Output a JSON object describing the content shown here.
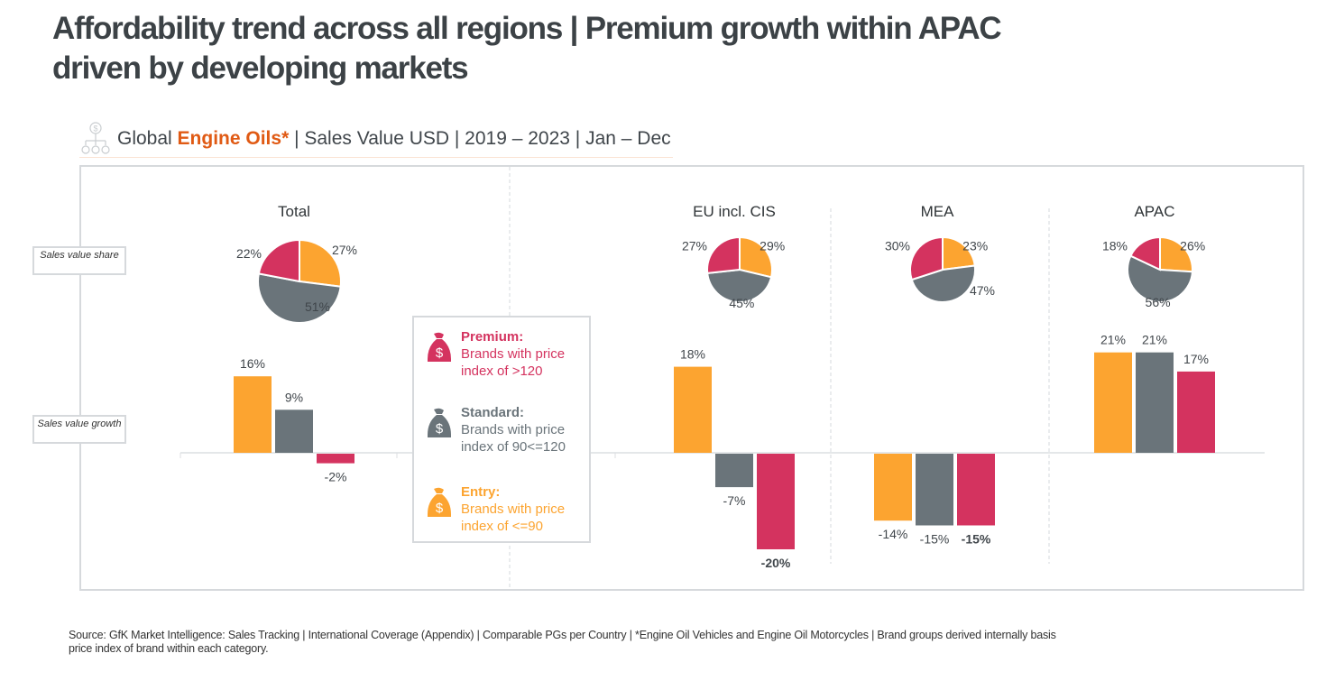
{
  "header": {
    "title": "Affordability trend across all regions | Premium growth within APAC driven by developing markets",
    "subtitle_prefix": "Global ",
    "subtitle_accent": "Engine Oils*",
    "subtitle_suffix": " | Sales Value USD | 2019 – 2023 | Jan – Dec",
    "subtitle_icon": "hierarchy-money-icon"
  },
  "row_labels": {
    "share": "Sales value share",
    "growth": "Sales value growth"
  },
  "legend": [
    {
      "key": "premium",
      "title": "Premium:",
      "desc1": "Brands with price",
      "desc2": "index of >120",
      "color": "#d4335f",
      "icon": "money-bag-icon"
    },
    {
      "key": "standard",
      "title": "Standard:",
      "desc1": "Brands with price",
      "desc2": "index of 90<=120",
      "color": "#6a747a",
      "icon": "money-bag-icon"
    },
    {
      "key": "entry",
      "title": "Entry:",
      "desc1": "Brands with price",
      "desc2": "index of <=90",
      "color": "#fca430",
      "icon": "money-bag-icon"
    }
  ],
  "footer": "Source: GfK Market Intelligence: Sales Tracking | International Coverage (Appendix) | Comparable PGs per Country | *Engine Oil Vehicles and Engine Oil Motorcycles | Brand groups derived internally basis price index of brand within each category.",
  "chart_data": {
    "type": "bar",
    "title": "Global Engine Oils* | Sales Value USD | 2019 – 2023 | Jan – Dec",
    "categories": [
      "Total",
      "EU incl. CIS",
      "MEA",
      "APAC"
    ],
    "colors": {
      "Entry": "#fca430",
      "Standard": "#6a747a",
      "Premium": "#d4335f"
    },
    "share": {
      "type": "pie",
      "label": "Sales value share",
      "series": [
        {
          "name": "Entry",
          "values": [
            27,
            29,
            23,
            26
          ]
        },
        {
          "name": "Standard",
          "values": [
            51,
            45,
            47,
            56
          ]
        },
        {
          "name": "Premium",
          "values": [
            22,
            27,
            30,
            18
          ]
        }
      ]
    },
    "growth": {
      "type": "bar",
      "label": "Sales value growth",
      "unit": "%",
      "series": [
        {
          "name": "Entry",
          "values": [
            16,
            18,
            -14,
            21
          ]
        },
        {
          "name": "Standard",
          "values": [
            9,
            -7,
            -15,
            21
          ]
        },
        {
          "name": "Premium",
          "values": [
            -2,
            -20,
            -15,
            17
          ]
        }
      ],
      "bold_labels": [
        [
          false,
          false,
          false
        ],
        [
          false,
          false,
          true
        ],
        [
          false,
          false,
          true
        ],
        [
          false,
          false,
          false
        ]
      ]
    },
    "xlabel": "",
    "ylabel": "",
    "grid": false,
    "legend_position": "center-left"
  }
}
